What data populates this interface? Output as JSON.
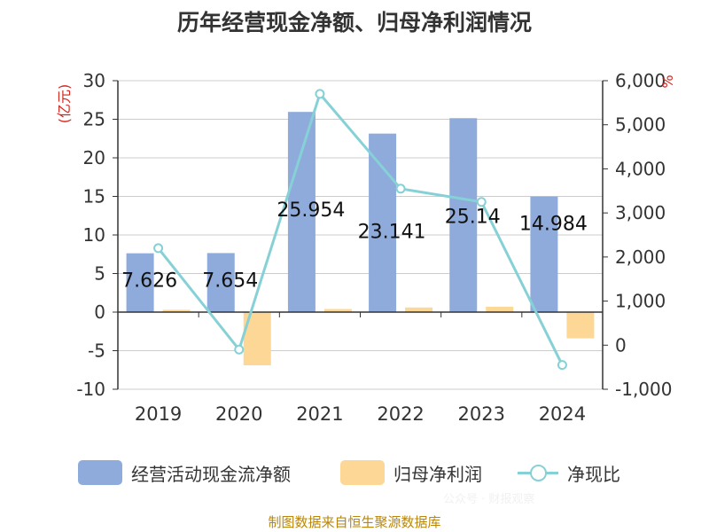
{
  "page": {
    "title": "历年经营现金净额、归母净利润情况",
    "footer": "制图数据来自恒生聚源数据库",
    "watermark": "公众号 · 财报观察"
  },
  "chart_data": {
    "type": "bar+line",
    "title": "历年经营现金净额、归母净利润情况",
    "categories": [
      "2019",
      "2020",
      "2021",
      "2022",
      "2023",
      "2024"
    ],
    "y_left": {
      "label": "(亿元)",
      "min": -10,
      "max": 30,
      "ticks": [
        -10,
        -5,
        0,
        5,
        10,
        15,
        20,
        25,
        30
      ]
    },
    "y_right": {
      "label": "%",
      "min": -1000,
      "max": 6000,
      "ticks": [
        -1000,
        0,
        1000,
        2000,
        3000,
        4000,
        5000,
        6000
      ],
      "tick_labels": [
        "-1,000",
        "0",
        "1,000",
        "2,000",
        "3,000",
        "4,000",
        "5,000",
        "6,000"
      ]
    },
    "series": [
      {
        "name": "经营活动现金流净额",
        "type": "bar",
        "axis": "left",
        "color": "#8eabdb",
        "values": [
          7.626,
          7.654,
          25.954,
          23.141,
          25.14,
          14.984
        ],
        "labels": [
          "7.626",
          "7.654",
          "25.954",
          "23.141",
          "25.14",
          "14.984"
        ]
      },
      {
        "name": "归母净利润",
        "type": "bar",
        "axis": "left",
        "color": "#fdd795",
        "values": [
          0.3,
          -6.9,
          0.4,
          0.6,
          0.7,
          -3.4
        ]
      },
      {
        "name": "净现比",
        "type": "line",
        "axis": "right",
        "color": "#86d1d6",
        "values": [
          2200,
          -100,
          5700,
          3550,
          3250,
          -450
        ]
      }
    ],
    "legend": [
      "经营活动现金流净额",
      "归母净利润",
      "净现比"
    ],
    "legend_position": "bottom",
    "grid": true
  }
}
